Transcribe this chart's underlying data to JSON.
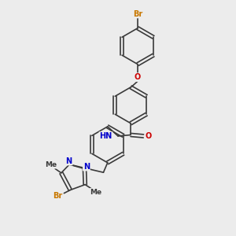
{
  "bg_color": "#ececec",
  "bond_color": "#3a3a3a",
  "bond_width": 1.2,
  "atom_colors": {
    "Br": "#c87800",
    "O": "#cc0000",
    "N": "#0000cc",
    "C": "#3a3a3a"
  },
  "font_size_atom": 7.0,
  "font_size_small": 6.5,
  "fig_w": 3.0,
  "fig_h": 3.0,
  "dpi": 100,
  "xlim": [
    0,
    10
  ],
  "ylim": [
    0,
    10
  ]
}
